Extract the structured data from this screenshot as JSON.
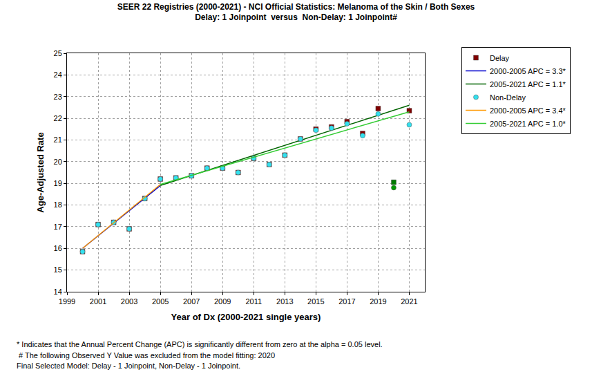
{
  "chart_data": {
    "type": "scatter",
    "title": "SEER 22 Registries (2000-2021) - NCI Official Statistics: Melanoma of the Skin / Both Sexes",
    "subtitle": "Delay: 1 Joinpoint  versus  Non-Delay: 1 Joinpoint#",
    "x_label": "Year of Dx (2000-2021 single years)",
    "y_label": "Age-Adjusted Rate",
    "xlim": [
      1999,
      2022
    ],
    "xticks": [
      1999,
      2001,
      2003,
      2005,
      2007,
      2009,
      2011,
      2013,
      2015,
      2017,
      2019,
      2021
    ],
    "ylim": [
      14,
      25
    ],
    "yticks": [
      14,
      15,
      16,
      17,
      18,
      19,
      20,
      21,
      22,
      23,
      24,
      25
    ],
    "grid": true,
    "legend": "outside top right",
    "series": [
      {
        "name": "Delay",
        "type": "scatter",
        "marker": "square",
        "color": "#800000",
        "x": [
          2000,
          2001,
          2002,
          2003,
          2004,
          2005,
          2006,
          2007,
          2008,
          2009,
          2010,
          2011,
          2012,
          2013,
          2014,
          2015,
          2016,
          2017,
          2018,
          2019,
          2020,
          2021
        ],
        "values": [
          15.85,
          17.1,
          17.2,
          16.9,
          18.3,
          19.2,
          19.25,
          19.35,
          19.7,
          19.7,
          19.5,
          20.15,
          19.87,
          20.3,
          21.05,
          21.5,
          21.6,
          21.85,
          21.3,
          22.45,
          19.05,
          22.35
        ],
        "colors": [
          "#800000",
          "#800000",
          "#800000",
          "#800000",
          "#800000",
          "#800000",
          "#800000",
          "#800000",
          "#800000",
          "#800000",
          "#800000",
          "#800000",
          "#800000",
          "#800000",
          "#800000",
          "#800000",
          "#800000",
          "#800000",
          "#800000",
          "#800000",
          "#007a00",
          "#800000"
        ]
      },
      {
        "name": "2000-2005 APC = 3.3*",
        "type": "line",
        "line_style": "solid",
        "color": "#0000cc",
        "x": [
          2000,
          2005
        ],
        "values": [
          16.0,
          18.9
        ]
      },
      {
        "name": "2005-2021 APC = 1.1*",
        "type": "line",
        "line_style": "solid",
        "color": "#006400",
        "x": [
          2005,
          2021
        ],
        "values": [
          18.9,
          22.6
        ]
      },
      {
        "name": "Non-Delay",
        "type": "scatter",
        "marker": "circle",
        "color": "#33e0ee",
        "x": [
          2000,
          2001,
          2002,
          2003,
          2004,
          2005,
          2006,
          2007,
          2008,
          2009,
          2010,
          2011,
          2012,
          2013,
          2014,
          2015,
          2016,
          2017,
          2018,
          2019,
          2020,
          2021
        ],
        "values": [
          15.85,
          17.1,
          17.2,
          16.9,
          18.3,
          19.2,
          19.25,
          19.35,
          19.7,
          19.7,
          19.5,
          20.15,
          19.87,
          20.3,
          21.05,
          21.45,
          21.55,
          21.75,
          21.2,
          22.2,
          18.8,
          21.7
        ],
        "colors": [
          "#33e0ee",
          "#33e0ee",
          "#33e0ee",
          "#33e0ee",
          "#33e0ee",
          "#33e0ee",
          "#33e0ee",
          "#33e0ee",
          "#33e0ee",
          "#33e0ee",
          "#33e0ee",
          "#33e0ee",
          "#33e0ee",
          "#33e0ee",
          "#33e0ee",
          "#33e0ee",
          "#33e0ee",
          "#33e0ee",
          "#33e0ee",
          "#33e0ee",
          "#009a00",
          "#33e0ee"
        ]
      },
      {
        "name": "2000-2005 APC = 3.4*",
        "type": "line",
        "line_style": "solid",
        "color": "#ff9900",
        "x": [
          2000,
          2005
        ],
        "values": [
          16.0,
          18.95
        ]
      },
      {
        "name": "2005-2021 APC = 1.0*",
        "type": "line",
        "line_style": "solid",
        "color": "#33cc33",
        "x": [
          2005,
          2021
        ],
        "values": [
          18.95,
          22.3
        ]
      }
    ],
    "annotations": [
      "* Indicates that the Annual Percent Change (APC) is significantly different from zero at the alpha = 0.05 level.",
      " # The following Observed Y Value was excluded from the model fitting: 2020",
      "Final Selected Model: Delay - 1 Joinpoint, Non-Delay - 1 Joinpoint."
    ]
  }
}
